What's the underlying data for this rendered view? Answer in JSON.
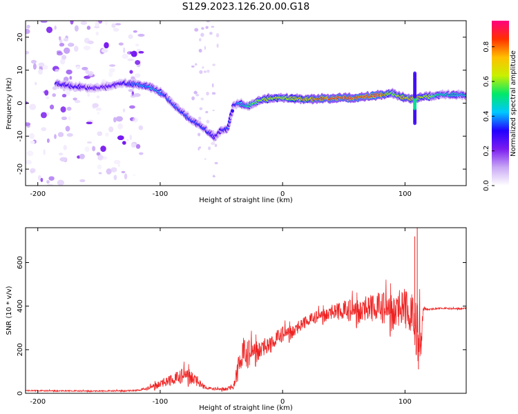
{
  "title": "S129.2023.126.20.00.G18",
  "chart_data": [
    {
      "type": "heatmap",
      "xlabel": "Height of straight line (km)",
      "ylabel": "Frequency (Hz)",
      "xlim": [
        -210,
        150
      ],
      "ylim": [
        -25,
        25
      ],
      "xticks": [
        -200,
        -100,
        0,
        100
      ],
      "yticks": [
        -20,
        -10,
        0,
        10,
        20
      ],
      "colorbar": {
        "label": "Normalized spectral amplitude",
        "range": [
          0,
          0.95
        ],
        "ticks": [
          "0.0",
          "0.2",
          "0.4",
          "0.6",
          "0.8"
        ],
        "colors": [
          "#ffffff",
          "#c9a8f5",
          "#7b1cf0",
          "#2200ff",
          "#00c8ff",
          "#00e86a",
          "#c8f000",
          "#ffc000",
          "#ff3000",
          "#ff0080"
        ]
      },
      "ridge": {
        "x": [
          -185,
          -170,
          -150,
          -130,
          -115,
          -105,
          -95,
          -85,
          -75,
          -65,
          -55,
          -50,
          -45,
          -40,
          -35,
          -30,
          -20,
          -10,
          0,
          20,
          40,
          60,
          80,
          90,
          100,
          110,
          130,
          150
        ],
        "freq": [
          6,
          5,
          4.5,
          6,
          5.5,
          4.5,
          2,
          -2,
          -5,
          -7.5,
          -10.5,
          -8,
          -8,
          -0.5,
          0,
          -1,
          0.5,
          1.5,
          1.5,
          1.2,
          1.5,
          1.5,
          2.5,
          3,
          1.5,
          1.5,
          2.5,
          2.5
        ],
        "amp": [
          0.3,
          0.3,
          0.25,
          0.3,
          0.4,
          0.45,
          0.35,
          0.35,
          0.35,
          0.35,
          0.3,
          0.3,
          0.35,
          0.3,
          0.4,
          0.5,
          0.6,
          0.7,
          0.65,
          0.75,
          0.85,
          0.85,
          0.85,
          0.6,
          0.75,
          0.75,
          0.5,
          0.45
        ]
      }
    },
    {
      "type": "line",
      "xlabel": "Height of straight line (km)",
      "ylabel": "SNR (10 * v/v)",
      "xlim": [
        -210,
        150
      ],
      "ylim": [
        0,
        760
      ],
      "xticks": [
        -200,
        -100,
        0,
        100
      ],
      "yticks": [
        0,
        200,
        400,
        600
      ],
      "color": "#ee2222",
      "series": [
        {
          "x": [
            -210,
            -150,
            -120,
            -110,
            -100,
            -95,
            -90,
            -85,
            -80,
            -75,
            -70,
            -65,
            -60,
            -55,
            -50,
            -45,
            -40,
            -37,
            -35,
            -32,
            -30,
            -25,
            -20,
            -15,
            -10,
            -5,
            0,
            10,
            20,
            30,
            40,
            50,
            60,
            70,
            80,
            90,
            100,
            105,
            110,
            113,
            115,
            120,
            130,
            140,
            150
          ],
          "y": [
            12,
            10,
            12,
            22,
            45,
            50,
            60,
            70,
            85,
            80,
            55,
            30,
            22,
            20,
            18,
            22,
            30,
            90,
            150,
            180,
            170,
            190,
            200,
            210,
            215,
            250,
            270,
            290,
            330,
            355,
            370,
            375,
            380,
            385,
            390,
            380,
            385,
            350,
            280,
            200,
            390,
            385,
            390,
            388,
            390
          ]
        }
      ],
      "noise": [
        4,
        4,
        5,
        10,
        25,
        30,
        35,
        40,
        45,
        45,
        35,
        15,
        8,
        8,
        8,
        12,
        20,
        60,
        80,
        90,
        90,
        70,
        60,
        55,
        50,
        45,
        45,
        40,
        35,
        35,
        45,
        60,
        70,
        80,
        90,
        110,
        120,
        130,
        170,
        190,
        8,
        6,
        5,
        5,
        5
      ],
      "spikes": [
        {
          "x": 98,
          "y": 420
        },
        {
          "x": 108,
          "y": 720
        },
        {
          "x": 110,
          "y": 760
        },
        {
          "x": 111,
          "y": 110
        }
      ]
    }
  ]
}
